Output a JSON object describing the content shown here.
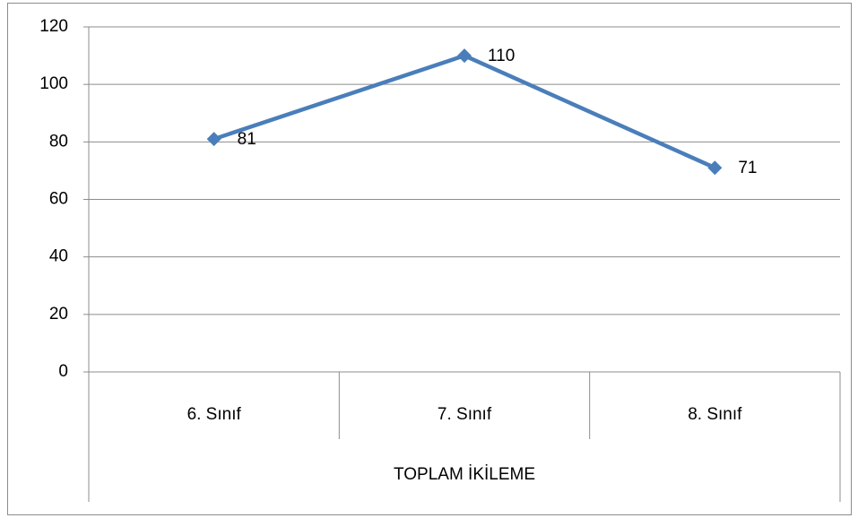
{
  "chart_data": {
    "type": "line",
    "categories": [
      "6. Sınıf",
      "7. Sınıf",
      "8. Sınıf"
    ],
    "category_group": "TOPLAM İKİLEME",
    "values": [
      81,
      110,
      71
    ],
    "color": "#4a7ebb",
    "ylim": [
      0,
      120
    ],
    "yticks": [
      0,
      20,
      40,
      60,
      80,
      100,
      120
    ],
    "grid": true
  }
}
